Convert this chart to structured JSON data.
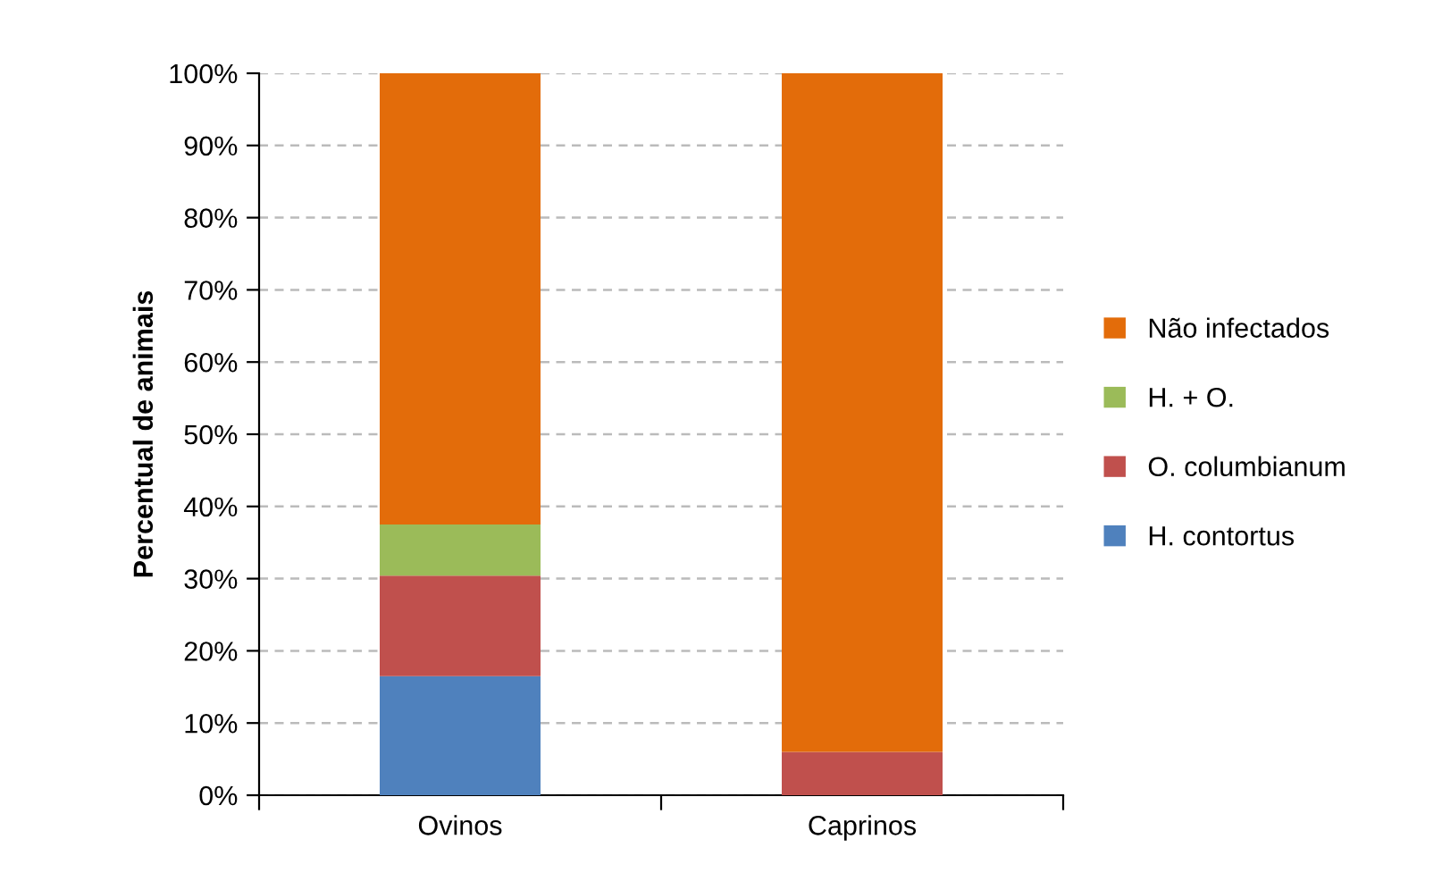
{
  "chart_data": {
    "type": "bar",
    "stacked": true,
    "ylabel": "Percentual de animais",
    "categories": [
      "Ovinos",
      "Caprinos"
    ],
    "series": [
      {
        "name": "H. contortus",
        "color": "#4f81bd",
        "values": [
          16.5,
          0
        ]
      },
      {
        "name": "O. columbianum",
        "color": "#c0504d",
        "values": [
          13.9,
          6.0
        ]
      },
      {
        "name": "H. + O.",
        "color": "#9bbb59",
        "values": [
          7.1,
          0
        ]
      },
      {
        "name": "Não infectados",
        "color": "#e36c0a",
        "values": [
          62.5,
          94.0
        ]
      }
    ],
    "ylim": [
      0,
      100
    ],
    "yticks": [
      {
        "value": 0,
        "label": "0%"
      },
      {
        "value": 10,
        "label": "10%"
      },
      {
        "value": 20,
        "label": "20%"
      },
      {
        "value": 30,
        "label": "30%"
      },
      {
        "value": 40,
        "label": "40%"
      },
      {
        "value": 50,
        "label": "50%"
      },
      {
        "value": 60,
        "label": "60%"
      },
      {
        "value": 70,
        "label": "70%"
      },
      {
        "value": 80,
        "label": "80%"
      },
      {
        "value": 90,
        "label": "90%"
      },
      {
        "value": 100,
        "label": "100%"
      }
    ],
    "grid": "y",
    "legend": "right"
  }
}
